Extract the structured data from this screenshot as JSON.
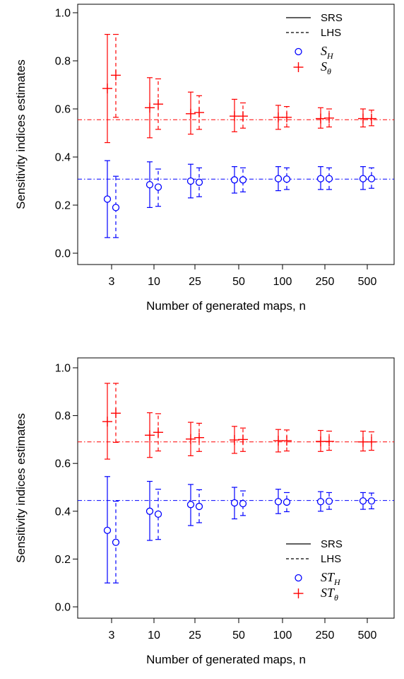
{
  "colors": {
    "S_H": "#0000ff",
    "S_theta": "#ff0000",
    "axis": "#000000"
  },
  "chart_data": [
    {
      "type": "scatter",
      "xlabel": "Number of generated maps, n",
      "ylabel": "Sensitivity indices estimates",
      "categories": [
        "3",
        "10",
        "25",
        "50",
        "100",
        "250",
        "500"
      ],
      "ylim": [
        0,
        1
      ],
      "yticks": [
        "0.0",
        "0.2",
        "0.4",
        "0.6",
        "0.8",
        "1.0"
      ],
      "legend_position": "top-right",
      "legend": {
        "lines": [
          {
            "label": "SRS",
            "style": "solid"
          },
          {
            "label": "LHS",
            "style": "dashed"
          }
        ],
        "markers": [
          {
            "base": "S",
            "sub": "H",
            "marker": "circle",
            "color": "#0000ff"
          },
          {
            "base": "S",
            "sub": "θ",
            "marker": "plus",
            "color": "#ff0000"
          }
        ]
      },
      "reference_lines": [
        {
          "name": "S_H",
          "y": 0.308,
          "color": "#0000ff"
        },
        {
          "name": "S_theta",
          "y": 0.555,
          "color": "#ff0000"
        }
      ],
      "series": [
        {
          "name": "S_H",
          "sampling": "SRS",
          "marker": "circle",
          "color": "#0000ff",
          "values": [
            0.225,
            0.285,
            0.3,
            0.305,
            0.31,
            0.31,
            0.31
          ],
          "lower": [
            0.065,
            0.19,
            0.23,
            0.25,
            0.26,
            0.265,
            0.265
          ],
          "upper": [
            0.385,
            0.38,
            0.37,
            0.36,
            0.36,
            0.36,
            0.36
          ]
        },
        {
          "name": "S_H",
          "sampling": "LHS",
          "marker": "circle",
          "color": "#0000ff",
          "values": [
            0.19,
            0.275,
            0.295,
            0.305,
            0.308,
            0.31,
            0.31
          ],
          "lower": [
            0.065,
            0.195,
            0.235,
            0.255,
            0.265,
            0.265,
            0.27
          ],
          "upper": [
            0.32,
            0.35,
            0.355,
            0.355,
            0.355,
            0.355,
            0.355
          ]
        },
        {
          "name": "S_theta",
          "sampling": "SRS",
          "marker": "plus",
          "color": "#ff0000",
          "values": [
            0.685,
            0.605,
            0.58,
            0.57,
            0.565,
            0.56,
            0.56
          ],
          "lower": [
            0.46,
            0.48,
            0.495,
            0.505,
            0.515,
            0.52,
            0.525
          ],
          "upper": [
            0.91,
            0.73,
            0.67,
            0.64,
            0.615,
            0.605,
            0.6
          ]
        },
        {
          "name": "S_theta",
          "sampling": "LHS",
          "marker": "plus",
          "color": "#ff0000",
          "values": [
            0.74,
            0.62,
            0.585,
            0.57,
            0.565,
            0.562,
            0.56
          ],
          "lower": [
            0.565,
            0.515,
            0.515,
            0.52,
            0.525,
            0.525,
            0.53
          ],
          "upper": [
            0.91,
            0.725,
            0.655,
            0.625,
            0.61,
            0.6,
            0.595
          ]
        }
      ]
    },
    {
      "type": "scatter",
      "xlabel": "Number of generated maps, n",
      "ylabel": "Sensitivity indices estimates",
      "categories": [
        "3",
        "10",
        "25",
        "50",
        "100",
        "250",
        "500"
      ],
      "ylim": [
        0,
        1
      ],
      "yticks": [
        "0.0",
        "0.2",
        "0.4",
        "0.6",
        "0.8",
        "1.0"
      ],
      "legend_position": "bottom-right",
      "legend": {
        "lines": [
          {
            "label": "SRS",
            "style": "solid"
          },
          {
            "label": "LHS",
            "style": "dashed"
          }
        ],
        "markers": [
          {
            "base": "ST",
            "sub": "H",
            "marker": "circle",
            "color": "#0000ff"
          },
          {
            "base": "ST",
            "sub": "θ",
            "marker": "plus",
            "color": "#ff0000"
          }
        ]
      },
      "reference_lines": [
        {
          "name": "ST_H",
          "y": 0.445,
          "color": "#0000ff"
        },
        {
          "name": "ST_theta",
          "y": 0.69,
          "color": "#ff0000"
        }
      ],
      "series": [
        {
          "name": "ST_H",
          "sampling": "SRS",
          "marker": "circle",
          "color": "#0000ff",
          "values": [
            0.32,
            0.4,
            0.428,
            0.435,
            0.44,
            0.44,
            0.443
          ],
          "lower": [
            0.1,
            0.278,
            0.34,
            0.368,
            0.39,
            0.4,
            0.408
          ],
          "upper": [
            0.545,
            0.525,
            0.512,
            0.5,
            0.492,
            0.482,
            0.478
          ]
        },
        {
          "name": "ST_H",
          "sampling": "LHS",
          "marker": "circle",
          "color": "#0000ff",
          "values": [
            0.27,
            0.388,
            0.42,
            0.432,
            0.438,
            0.442,
            0.443
          ],
          "lower": [
            0.1,
            0.282,
            0.352,
            0.382,
            0.398,
            0.408,
            0.41
          ],
          "upper": [
            0.442,
            0.492,
            0.49,
            0.485,
            0.478,
            0.478,
            0.476
          ]
        },
        {
          "name": "ST_theta",
          "sampling": "SRS",
          "marker": "plus",
          "color": "#ff0000",
          "values": [
            0.775,
            0.718,
            0.702,
            0.698,
            0.695,
            0.692,
            0.69
          ],
          "lower": [
            0.618,
            0.625,
            0.632,
            0.642,
            0.648,
            0.65,
            0.652
          ],
          "upper": [
            0.935,
            0.812,
            0.772,
            0.755,
            0.742,
            0.738,
            0.735
          ]
        },
        {
          "name": "ST_theta",
          "sampling": "LHS",
          "marker": "plus",
          "color": "#ff0000",
          "values": [
            0.81,
            0.73,
            0.708,
            0.7,
            0.695,
            0.692,
            0.69
          ],
          "lower": [
            0.688,
            0.652,
            0.65,
            0.65,
            0.652,
            0.655,
            0.655
          ],
          "upper": [
            0.935,
            0.808,
            0.768,
            0.748,
            0.74,
            0.735,
            0.732
          ]
        }
      ]
    }
  ]
}
